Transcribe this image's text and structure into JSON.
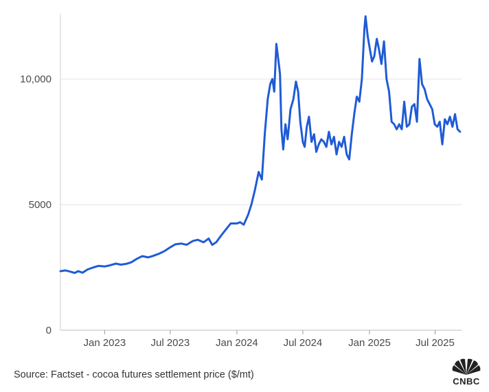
{
  "chart_data": {
    "type": "line",
    "title": "",
    "xlabel": "",
    "ylabel": "",
    "ylim": [
      0,
      12600
    ],
    "xlim": [
      "2022-09-01",
      "2025-09-12"
    ],
    "grid": "horizontal",
    "y_ticks": [
      {
        "value": 0,
        "label": "0"
      },
      {
        "value": 5000,
        "label": "5000"
      },
      {
        "value": 10000,
        "label": "10,000"
      }
    ],
    "x_ticks": [
      {
        "value": "2023-01-01",
        "label": "Jan 2023"
      },
      {
        "value": "2023-07-01",
        "label": "Jul 2023"
      },
      {
        "value": "2024-01-01",
        "label": "Jan 2024"
      },
      {
        "value": "2024-07-01",
        "label": "Jul 2024"
      },
      {
        "value": "2025-01-01",
        "label": "Jan 2025"
      },
      {
        "value": "2025-07-01",
        "label": "Jul 2025"
      }
    ],
    "series": [
      {
        "color": "#1f5bd6",
        "points": [
          [
            "2022-09-01",
            2350
          ],
          [
            "2022-09-15",
            2380
          ],
          [
            "2022-10-01",
            2320
          ],
          [
            "2022-10-10",
            2280
          ],
          [
            "2022-10-20",
            2350
          ],
          [
            "2022-11-01",
            2290
          ],
          [
            "2022-11-15",
            2420
          ],
          [
            "2022-12-01",
            2500
          ],
          [
            "2022-12-15",
            2560
          ],
          [
            "2023-01-01",
            2540
          ],
          [
            "2023-01-15",
            2580
          ],
          [
            "2023-02-01",
            2650
          ],
          [
            "2023-02-15",
            2610
          ],
          [
            "2023-03-01",
            2640
          ],
          [
            "2023-03-15",
            2700
          ],
          [
            "2023-04-01",
            2850
          ],
          [
            "2023-04-15",
            2950
          ],
          [
            "2023-05-01",
            2900
          ],
          [
            "2023-05-15",
            2960
          ],
          [
            "2023-06-01",
            3050
          ],
          [
            "2023-06-15",
            3150
          ],
          [
            "2023-07-01",
            3300
          ],
          [
            "2023-07-15",
            3420
          ],
          [
            "2023-08-01",
            3450
          ],
          [
            "2023-08-15",
            3400
          ],
          [
            "2023-09-01",
            3550
          ],
          [
            "2023-09-15",
            3600
          ],
          [
            "2023-10-01",
            3500
          ],
          [
            "2023-10-15",
            3650
          ],
          [
            "2023-10-25",
            3400
          ],
          [
            "2023-11-05",
            3500
          ],
          [
            "2023-11-20",
            3800
          ],
          [
            "2023-12-01",
            4000
          ],
          [
            "2023-12-15",
            4250
          ],
          [
            "2024-01-01",
            4250
          ],
          [
            "2024-01-10",
            4300
          ],
          [
            "2024-01-20",
            4200
          ],
          [
            "2024-02-01",
            4600
          ],
          [
            "2024-02-10",
            5000
          ],
          [
            "2024-02-20",
            5600
          ],
          [
            "2024-03-01",
            6300
          ],
          [
            "2024-03-10",
            6000
          ],
          [
            "2024-03-18",
            7800
          ],
          [
            "2024-03-26",
            9200
          ],
          [
            "2024-04-02",
            9800
          ],
          [
            "2024-04-08",
            10000
          ],
          [
            "2024-04-13",
            9500
          ],
          [
            "2024-04-19",
            11400
          ],
          [
            "2024-04-24",
            10800
          ],
          [
            "2024-04-29",
            10200
          ],
          [
            "2024-05-03",
            8000
          ],
          [
            "2024-05-08",
            7200
          ],
          [
            "2024-05-14",
            8200
          ],
          [
            "2024-05-20",
            7600
          ],
          [
            "2024-05-28",
            8800
          ],
          [
            "2024-06-05",
            9200
          ],
          [
            "2024-06-12",
            9900
          ],
          [
            "2024-06-18",
            9500
          ],
          [
            "2024-06-24",
            8300
          ],
          [
            "2024-07-01",
            7500
          ],
          [
            "2024-07-06",
            7300
          ],
          [
            "2024-07-12",
            8100
          ],
          [
            "2024-07-18",
            8500
          ],
          [
            "2024-07-25",
            7500
          ],
          [
            "2024-08-01",
            7800
          ],
          [
            "2024-08-07",
            7100
          ],
          [
            "2024-08-14",
            7400
          ],
          [
            "2024-08-21",
            7600
          ],
          [
            "2024-08-28",
            7500
          ],
          [
            "2024-09-04",
            7300
          ],
          [
            "2024-09-11",
            7900
          ],
          [
            "2024-09-18",
            7400
          ],
          [
            "2024-09-25",
            7700
          ],
          [
            "2024-10-02",
            7000
          ],
          [
            "2024-10-09",
            7500
          ],
          [
            "2024-10-16",
            7300
          ],
          [
            "2024-10-23",
            7700
          ],
          [
            "2024-10-30",
            7000
          ],
          [
            "2024-11-06",
            6800
          ],
          [
            "2024-11-13",
            7800
          ],
          [
            "2024-11-20",
            8600
          ],
          [
            "2024-11-27",
            9300
          ],
          [
            "2024-12-04",
            9100
          ],
          [
            "2024-12-11",
            10000
          ],
          [
            "2024-12-18",
            12000
          ],
          [
            "2024-12-21",
            12500
          ],
          [
            "2024-12-27",
            11700
          ],
          [
            "2025-01-02",
            11200
          ],
          [
            "2025-01-08",
            10700
          ],
          [
            "2025-01-14",
            10900
          ],
          [
            "2025-01-21",
            11600
          ],
          [
            "2025-01-27",
            11200
          ],
          [
            "2025-02-03",
            10600
          ],
          [
            "2025-02-10",
            11500
          ],
          [
            "2025-02-17",
            10000
          ],
          [
            "2025-02-24",
            9500
          ],
          [
            "2025-03-03",
            8300
          ],
          [
            "2025-03-10",
            8200
          ],
          [
            "2025-03-17",
            8000
          ],
          [
            "2025-03-24",
            8200
          ],
          [
            "2025-03-31",
            8000
          ],
          [
            "2025-04-07",
            9100
          ],
          [
            "2025-04-14",
            8100
          ],
          [
            "2025-04-21",
            8200
          ],
          [
            "2025-04-28",
            8900
          ],
          [
            "2025-05-05",
            9000
          ],
          [
            "2025-05-12",
            8300
          ],
          [
            "2025-05-19",
            10800
          ],
          [
            "2025-05-26",
            9800
          ],
          [
            "2025-06-02",
            9600
          ],
          [
            "2025-06-09",
            9200
          ],
          [
            "2025-06-16",
            9000
          ],
          [
            "2025-06-23",
            8800
          ],
          [
            "2025-06-30",
            8200
          ],
          [
            "2025-07-07",
            8100
          ],
          [
            "2025-07-14",
            8300
          ],
          [
            "2025-07-21",
            7400
          ],
          [
            "2025-07-28",
            8400
          ],
          [
            "2025-08-04",
            8200
          ],
          [
            "2025-08-11",
            8500
          ],
          [
            "2025-08-18",
            8100
          ],
          [
            "2025-08-25",
            8600
          ],
          [
            "2025-09-01",
            8000
          ],
          [
            "2025-09-08",
            7900
          ]
        ]
      }
    ]
  },
  "source": "Source: Factset - cocoa futures settlement price ($/mt)",
  "logo": {
    "text": "CNBC",
    "icon": "peacock-icon"
  }
}
